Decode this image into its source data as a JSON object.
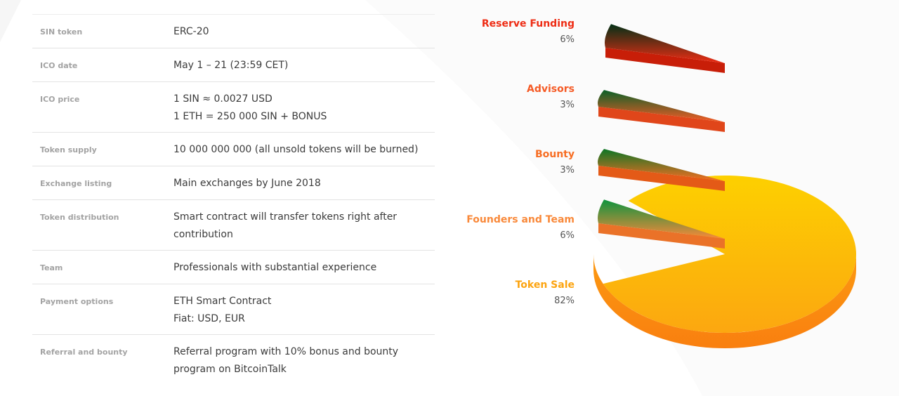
{
  "info_table": {
    "rows": [
      {
        "label": "SIN token",
        "value_lines": [
          "ERC-20"
        ]
      },
      {
        "label": "ICO date",
        "value_lines": [
          "May 1 – 21 (23:59 CET)"
        ]
      },
      {
        "label": "ICO price",
        "value_lines": [
          "1 SIN ≈ 0.0027 USD",
          "1 ETH = 250 000 SIN + BONUS"
        ]
      },
      {
        "label": "Token supply",
        "value_lines": [
          "10 000 000 000 (all unsold tokens will be burned)"
        ]
      },
      {
        "label": "Exchange listing",
        "value_lines": [
          "Main exchanges by June 2018"
        ]
      },
      {
        "label": "Token distribution",
        "value_lines": [
          "Smart contract will transfer tokens right after",
          "contribution"
        ]
      },
      {
        "label": "Team",
        "value_lines": [
          "Professionals with substantial experience"
        ]
      },
      {
        "label": "Payment options",
        "value_lines": [
          "ETH Smart Contract",
          "Fiat: USD, EUR"
        ]
      },
      {
        "label": "Referral and bounty",
        "value_lines": [
          "Referral program with 10% bonus and bounty",
          "program on BitcoinTalk"
        ]
      }
    ]
  },
  "chart_data": {
    "type": "pie",
    "title": "",
    "categories": [
      "Reserve Funding",
      "Advisors",
      "Bounty",
      "Founders and Team",
      "Token Sale"
    ],
    "values": [
      6,
      3,
      3,
      6,
      82
    ],
    "labels": [
      "6%",
      "3%",
      "3%",
      "6%",
      "82%"
    ],
    "colors": [
      "#ee2c14",
      "#f55a25",
      "#f76d22",
      "#f9893a",
      "#fdbd0f"
    ],
    "legend_position": "left"
  }
}
